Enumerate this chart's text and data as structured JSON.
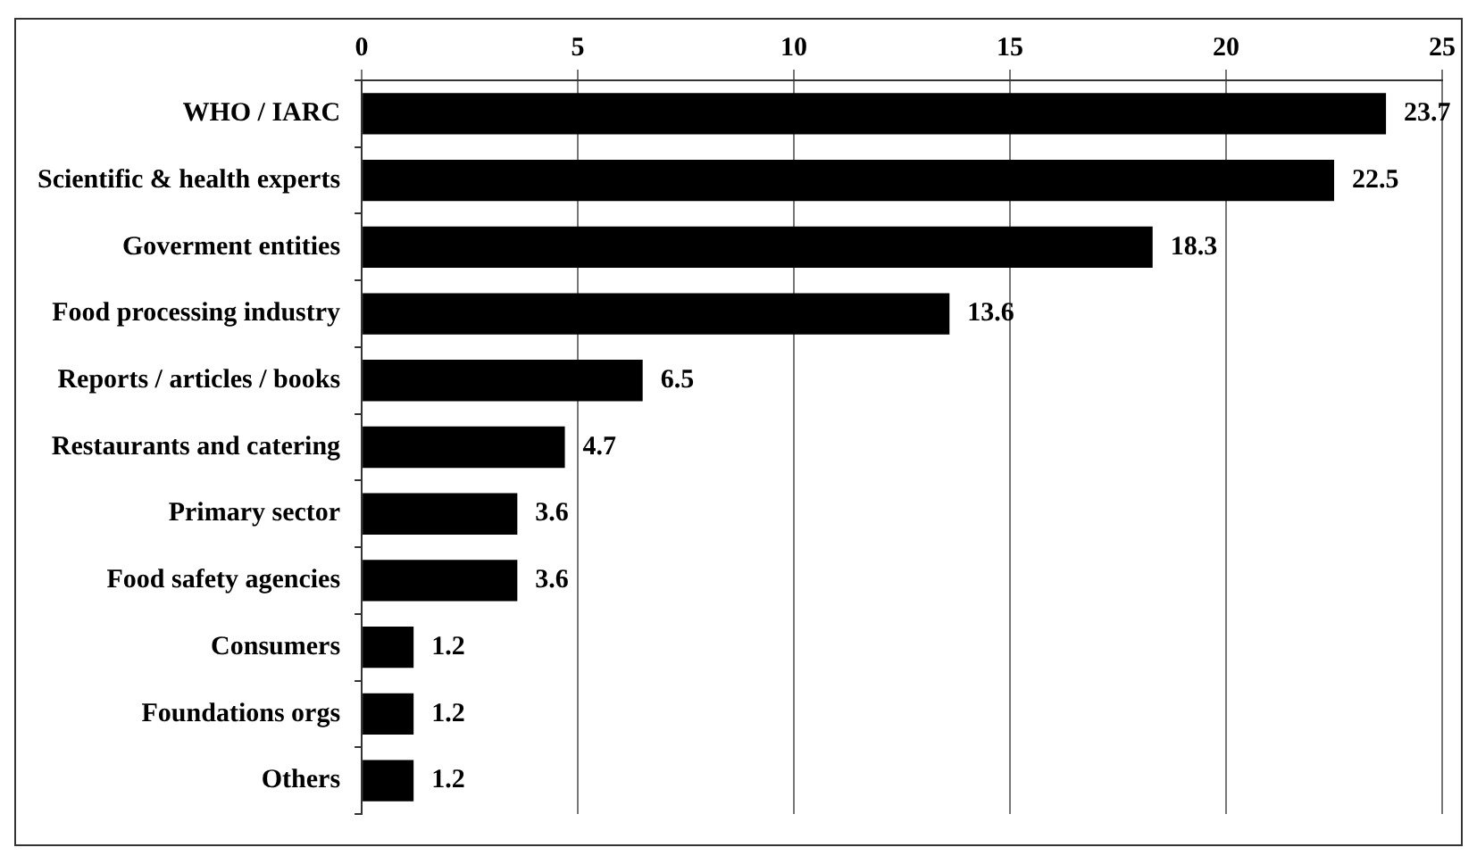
{
  "chart_data": {
    "type": "bar",
    "orientation": "horizontal",
    "categories": [
      "WHO / IARC",
      "Scientific & health experts",
      "Goverment entities",
      "Food processing industry",
      "Reports / articles / books",
      "Restaurants and catering",
      "Primary sector",
      "Food safety agencies",
      "Consumers",
      "Foundations orgs",
      "Others"
    ],
    "values": [
      23.7,
      22.5,
      18.3,
      13.6,
      6.5,
      4.7,
      3.6,
      3.6,
      1.2,
      1.2,
      1.2
    ],
    "color": "#000000",
    "xlim": [
      0,
      25
    ],
    "xticks": [
      0,
      5,
      10,
      15,
      20,
      25
    ],
    "grid": "x",
    "data_labels": true,
    "legend": false
  }
}
